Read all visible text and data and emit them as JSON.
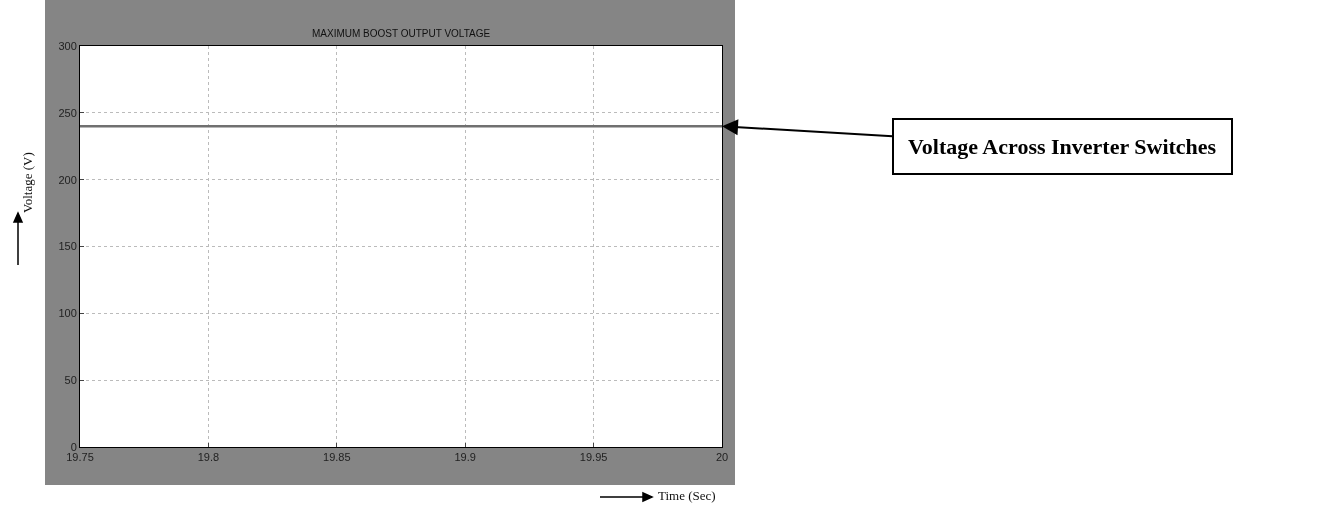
{
  "chart_data": {
    "type": "line",
    "title": "MAXIMUM BOOST OUTPUT VOLTAGE",
    "xlabel": "Time (Sec)",
    "ylabel": "Voltage (V)",
    "x": [
      19.75,
      20
    ],
    "series": [
      {
        "color": "#707070",
        "values": [
          240,
          240
        ]
      }
    ],
    "xlim": [
      19.75,
      20
    ],
    "xticks": [
      19.75,
      {
        "value": 19.8,
        "label": "19.8"
      },
      19.85,
      {
        "value": 19.9,
        "label": "19.9"
      },
      19.95,
      20
    ],
    "ylim": [
      0,
      300
    ],
    "yticks": [
      0,
      50,
      100,
      150,
      200,
      250,
      300
    ],
    "grid": true,
    "line_style": "solid",
    "marker": "none",
    "legend": false,
    "annotations": [
      {
        "text": "Voltage Across Inverter Switches",
        "x": 20,
        "y": 240
      }
    ]
  }
}
